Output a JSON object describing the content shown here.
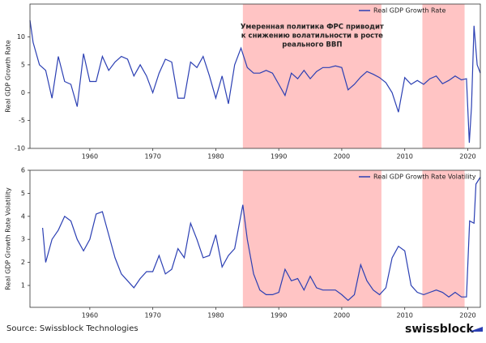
{
  "chart_data": [
    {
      "type": "line",
      "ylabel": "Real GDP Growth Rate",
      "x": [
        1950.5,
        1951,
        1952,
        1953,
        1954,
        1955,
        1956,
        1957,
        1958,
        1959,
        1960,
        1961,
        1962,
        1963,
        1964,
        1965,
        1966,
        1967,
        1968,
        1969,
        1970,
        1971,
        1972,
        1973,
        1974,
        1975,
        1976,
        1977,
        1978,
        1979,
        1980,
        1981,
        1982,
        1983,
        1984,
        1985,
        1986,
        1987,
        1988,
        1989,
        1990,
        1991,
        1992,
        1993,
        1994,
        1995,
        1996,
        1997,
        1998,
        1999,
        2000,
        2001,
        2002,
        2003,
        2004,
        2005,
        2006,
        2007,
        2008,
        2009,
        2010,
        2011,
        2012,
        2013,
        2014,
        2015,
        2016,
        2017,
        2018,
        2019,
        2019.8,
        2020.25,
        2020.6,
        2021,
        2021.5,
        2022
      ],
      "series": [
        {
          "name": "Real GDP Growth Rate",
          "color": "#2b3fb3",
          "values": [
            13,
            9,
            5,
            4,
            -1,
            6.5,
            2,
            1.5,
            -2.5,
            7,
            2,
            2,
            6.5,
            4,
            5.5,
            6.5,
            6,
            3,
            5,
            3,
            0,
            3.5,
            6,
            5.5,
            -1,
            -1,
            5.5,
            4.5,
            6.5,
            3,
            -1,
            3,
            -2,
            5,
            8,
            4.5,
            3.5,
            3.5,
            4,
            3.5,
            1.5,
            -0.5,
            3.5,
            2.5,
            4,
            2.5,
            3.8,
            4.5,
            4.5,
            4.8,
            4.5,
            0.5,
            1.5,
            2.8,
            3.8,
            3.3,
            2.7,
            1.8,
            0,
            -3.5,
            2.7,
            1.5,
            2.2,
            1.5,
            2.5,
            3,
            1.6,
            2.2,
            3,
            2.3,
            2.5,
            -9,
            -2.5,
            12,
            5,
            3.5
          ]
        }
      ],
      "xlim": [
        1950.5,
        2022
      ],
      "ylim": [
        -10,
        15.9
      ],
      "xticks": [
        1960,
        1970,
        1980,
        1990,
        2000,
        2010,
        2020
      ],
      "yticks": [
        10,
        5,
        0,
        -5,
        -10
      ],
      "shaded_regions": [
        [
          1984.3,
          2006.3
        ],
        [
          2012.8,
          2019.5
        ]
      ],
      "shade_color": "#ffc4c4",
      "annotation": [
        "Умеренная политика ФРС приводит",
        "к снижению волатильности в росте",
        "реального ВВП"
      ],
      "legend": "upper right"
    },
    {
      "type": "line",
      "ylabel": "Real GDP Growth Rate Volatility",
      "x": [
        1952.5,
        1953,
        1954,
        1955,
        1956,
        1957,
        1958,
        1959,
        1960,
        1961,
        1962,
        1963,
        1964,
        1965,
        1966,
        1967,
        1968,
        1969,
        1970,
        1971,
        1972,
        1973,
        1974,
        1975,
        1976,
        1977,
        1978,
        1979,
        1980,
        1981,
        1982,
        1983,
        1984.3,
        1985,
        1986,
        1987,
        1988,
        1989,
        1990,
        1991,
        1992,
        1993,
        1994,
        1995,
        1996,
        1997,
        1998,
        1999,
        2000,
        2001,
        2002,
        2003,
        2004,
        2005,
        2006,
        2007,
        2008,
        2009,
        2010,
        2011,
        2012,
        2013,
        2014,
        2015,
        2016,
        2017,
        2018,
        2019,
        2019.8,
        2020.3,
        2021,
        2021.3,
        2022
      ],
      "series": [
        {
          "name": "Real GDP Growth Rate Volatility",
          "color": "#2b3fb3",
          "values": [
            3.5,
            2,
            3,
            3.4,
            4,
            3.8,
            3,
            2.5,
            3,
            4.1,
            4.2,
            3.2,
            2.2,
            1.5,
            1.2,
            0.9,
            1.3,
            1.6,
            1.6,
            2.3,
            1.5,
            1.7,
            2.6,
            2.2,
            3.7,
            3,
            2.2,
            2.3,
            3.2,
            1.8,
            2.3,
            2.6,
            4.5,
            3,
            1.5,
            0.8,
            0.6,
            0.6,
            0.7,
            1.7,
            1.2,
            1.3,
            0.8,
            1.4,
            0.9,
            0.8,
            0.8,
            0.8,
            0.6,
            0.35,
            0.6,
            1.9,
            1.2,
            0.8,
            0.6,
            0.9,
            2.2,
            2.7,
            2.5,
            1,
            0.7,
            0.6,
            0.7,
            0.8,
            0.7,
            0.5,
            0.7,
            0.5,
            0.5,
            3.8,
            3.7,
            5.4,
            5.7
          ]
        }
      ],
      "xlim": [
        1950.5,
        2022
      ],
      "ylim": [
        0.05,
        6
      ],
      "xticks": [
        1960,
        1970,
        1980,
        1990,
        2000,
        2010,
        2020
      ],
      "yticks": [
        1,
        2,
        3,
        4,
        5,
        6
      ],
      "shaded_regions": [
        [
          1984.3,
          2006.3
        ],
        [
          2012.8,
          2019.5
        ]
      ],
      "shade_color": "#ffc4c4",
      "legend": "upper right"
    }
  ],
  "source": "Source: Swissblock Technologies",
  "logo": "swissblock"
}
